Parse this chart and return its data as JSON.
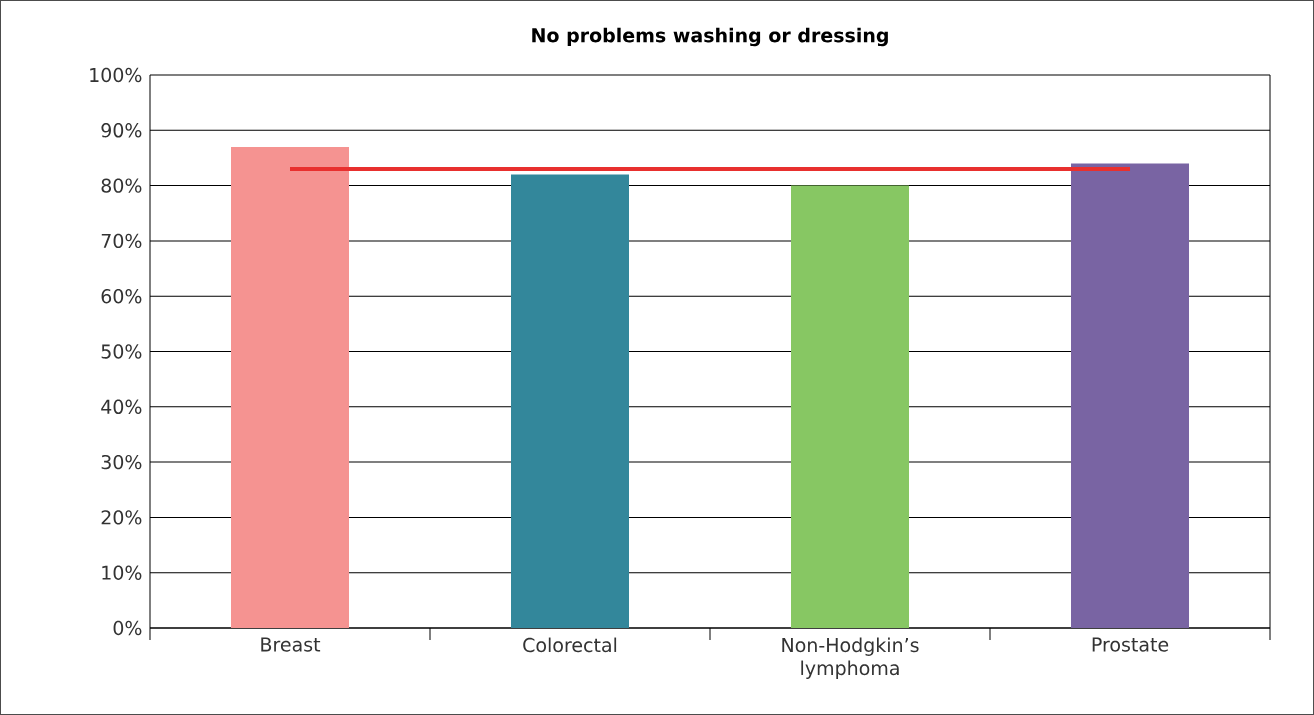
{
  "chart_data": {
    "type": "bar",
    "title": "No problems washing or dressing",
    "categories": [
      "Breast",
      "Colorectal",
      "Non-Hodgkin’s lymphoma",
      "Prostate"
    ],
    "values": [
      87,
      82,
      80,
      84
    ],
    "colors": [
      "#f59391",
      "#33879b",
      "#87c763",
      "#7964a3"
    ],
    "ylim": [
      0,
      100
    ],
    "yticks": [
      {
        "value": 0,
        "label": "0%"
      },
      {
        "value": 10,
        "label": "10%"
      },
      {
        "value": 20,
        "label": "20%"
      },
      {
        "value": 30,
        "label": "30%"
      },
      {
        "value": 40,
        "label": "40%"
      },
      {
        "value": 50,
        "label": "50%"
      },
      {
        "value": 60,
        "label": "60%"
      },
      {
        "value": 70,
        "label": "70%"
      },
      {
        "value": 80,
        "label": "80%"
      },
      {
        "value": 90,
        "label": "90%"
      },
      {
        "value": 100,
        "label": "100%"
      }
    ],
    "grid": "y",
    "ref_lines": [
      {
        "axis": "y",
        "value": 83,
        "color": "#e8302e"
      }
    ]
  }
}
